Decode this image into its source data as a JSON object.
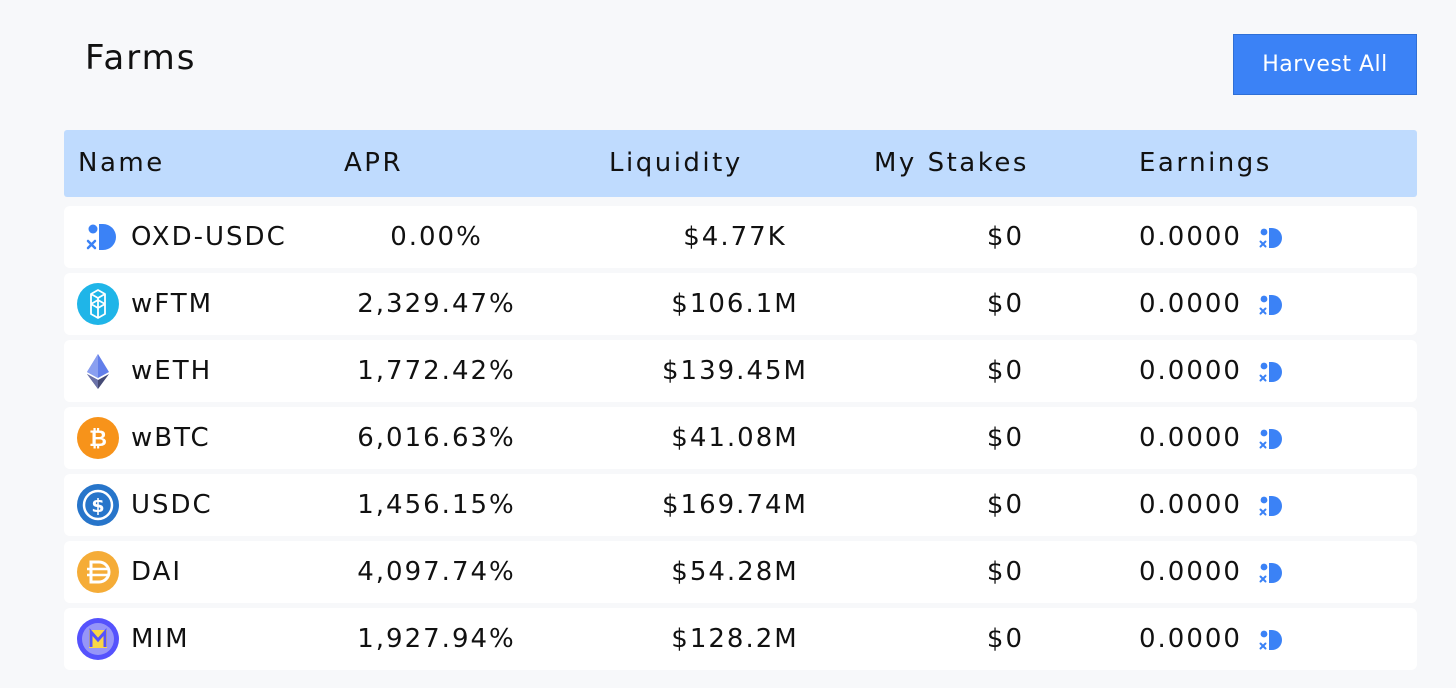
{
  "header": {
    "title": "Farms",
    "harvest_all_label": "Harvest All"
  },
  "table": {
    "columns": [
      "Name",
      "APR",
      "Liquidity",
      "My Stakes",
      "Earnings"
    ],
    "rows": [
      {
        "name": "OXD-USDC",
        "apr": "0.00%",
        "liquidity": "$4.77K",
        "my_stakes": "$0",
        "earnings": "0.0000",
        "icon": "oxd-icon"
      },
      {
        "name": "wFTM",
        "apr": "2,329.47%",
        "liquidity": "$106.1M",
        "my_stakes": "$0",
        "earnings": "0.0000",
        "icon": "fantom-icon"
      },
      {
        "name": "wETH",
        "apr": "1,772.42%",
        "liquidity": "$139.45M",
        "my_stakes": "$0",
        "earnings": "0.0000",
        "icon": "ethereum-icon"
      },
      {
        "name": "wBTC",
        "apr": "6,016.63%",
        "liquidity": "$41.08M",
        "my_stakes": "$0",
        "earnings": "0.0000",
        "icon": "bitcoin-icon"
      },
      {
        "name": "USDC",
        "apr": "1,456.15%",
        "liquidity": "$169.74M",
        "my_stakes": "$0",
        "earnings": "0.0000",
        "icon": "usdc-icon"
      },
      {
        "name": "DAI",
        "apr": "4,097.74%",
        "liquidity": "$54.28M",
        "my_stakes": "$0",
        "earnings": "0.0000",
        "icon": "dai-icon"
      },
      {
        "name": "MIM",
        "apr": "1,927.94%",
        "liquidity": "$128.2M",
        "my_stakes": "$0",
        "earnings": "0.0000",
        "icon": "mim-icon"
      }
    ]
  },
  "colors": {
    "accent": "#3b82f6",
    "header_bg": "#bfdbfe",
    "page_bg": "#f7f8fa"
  }
}
